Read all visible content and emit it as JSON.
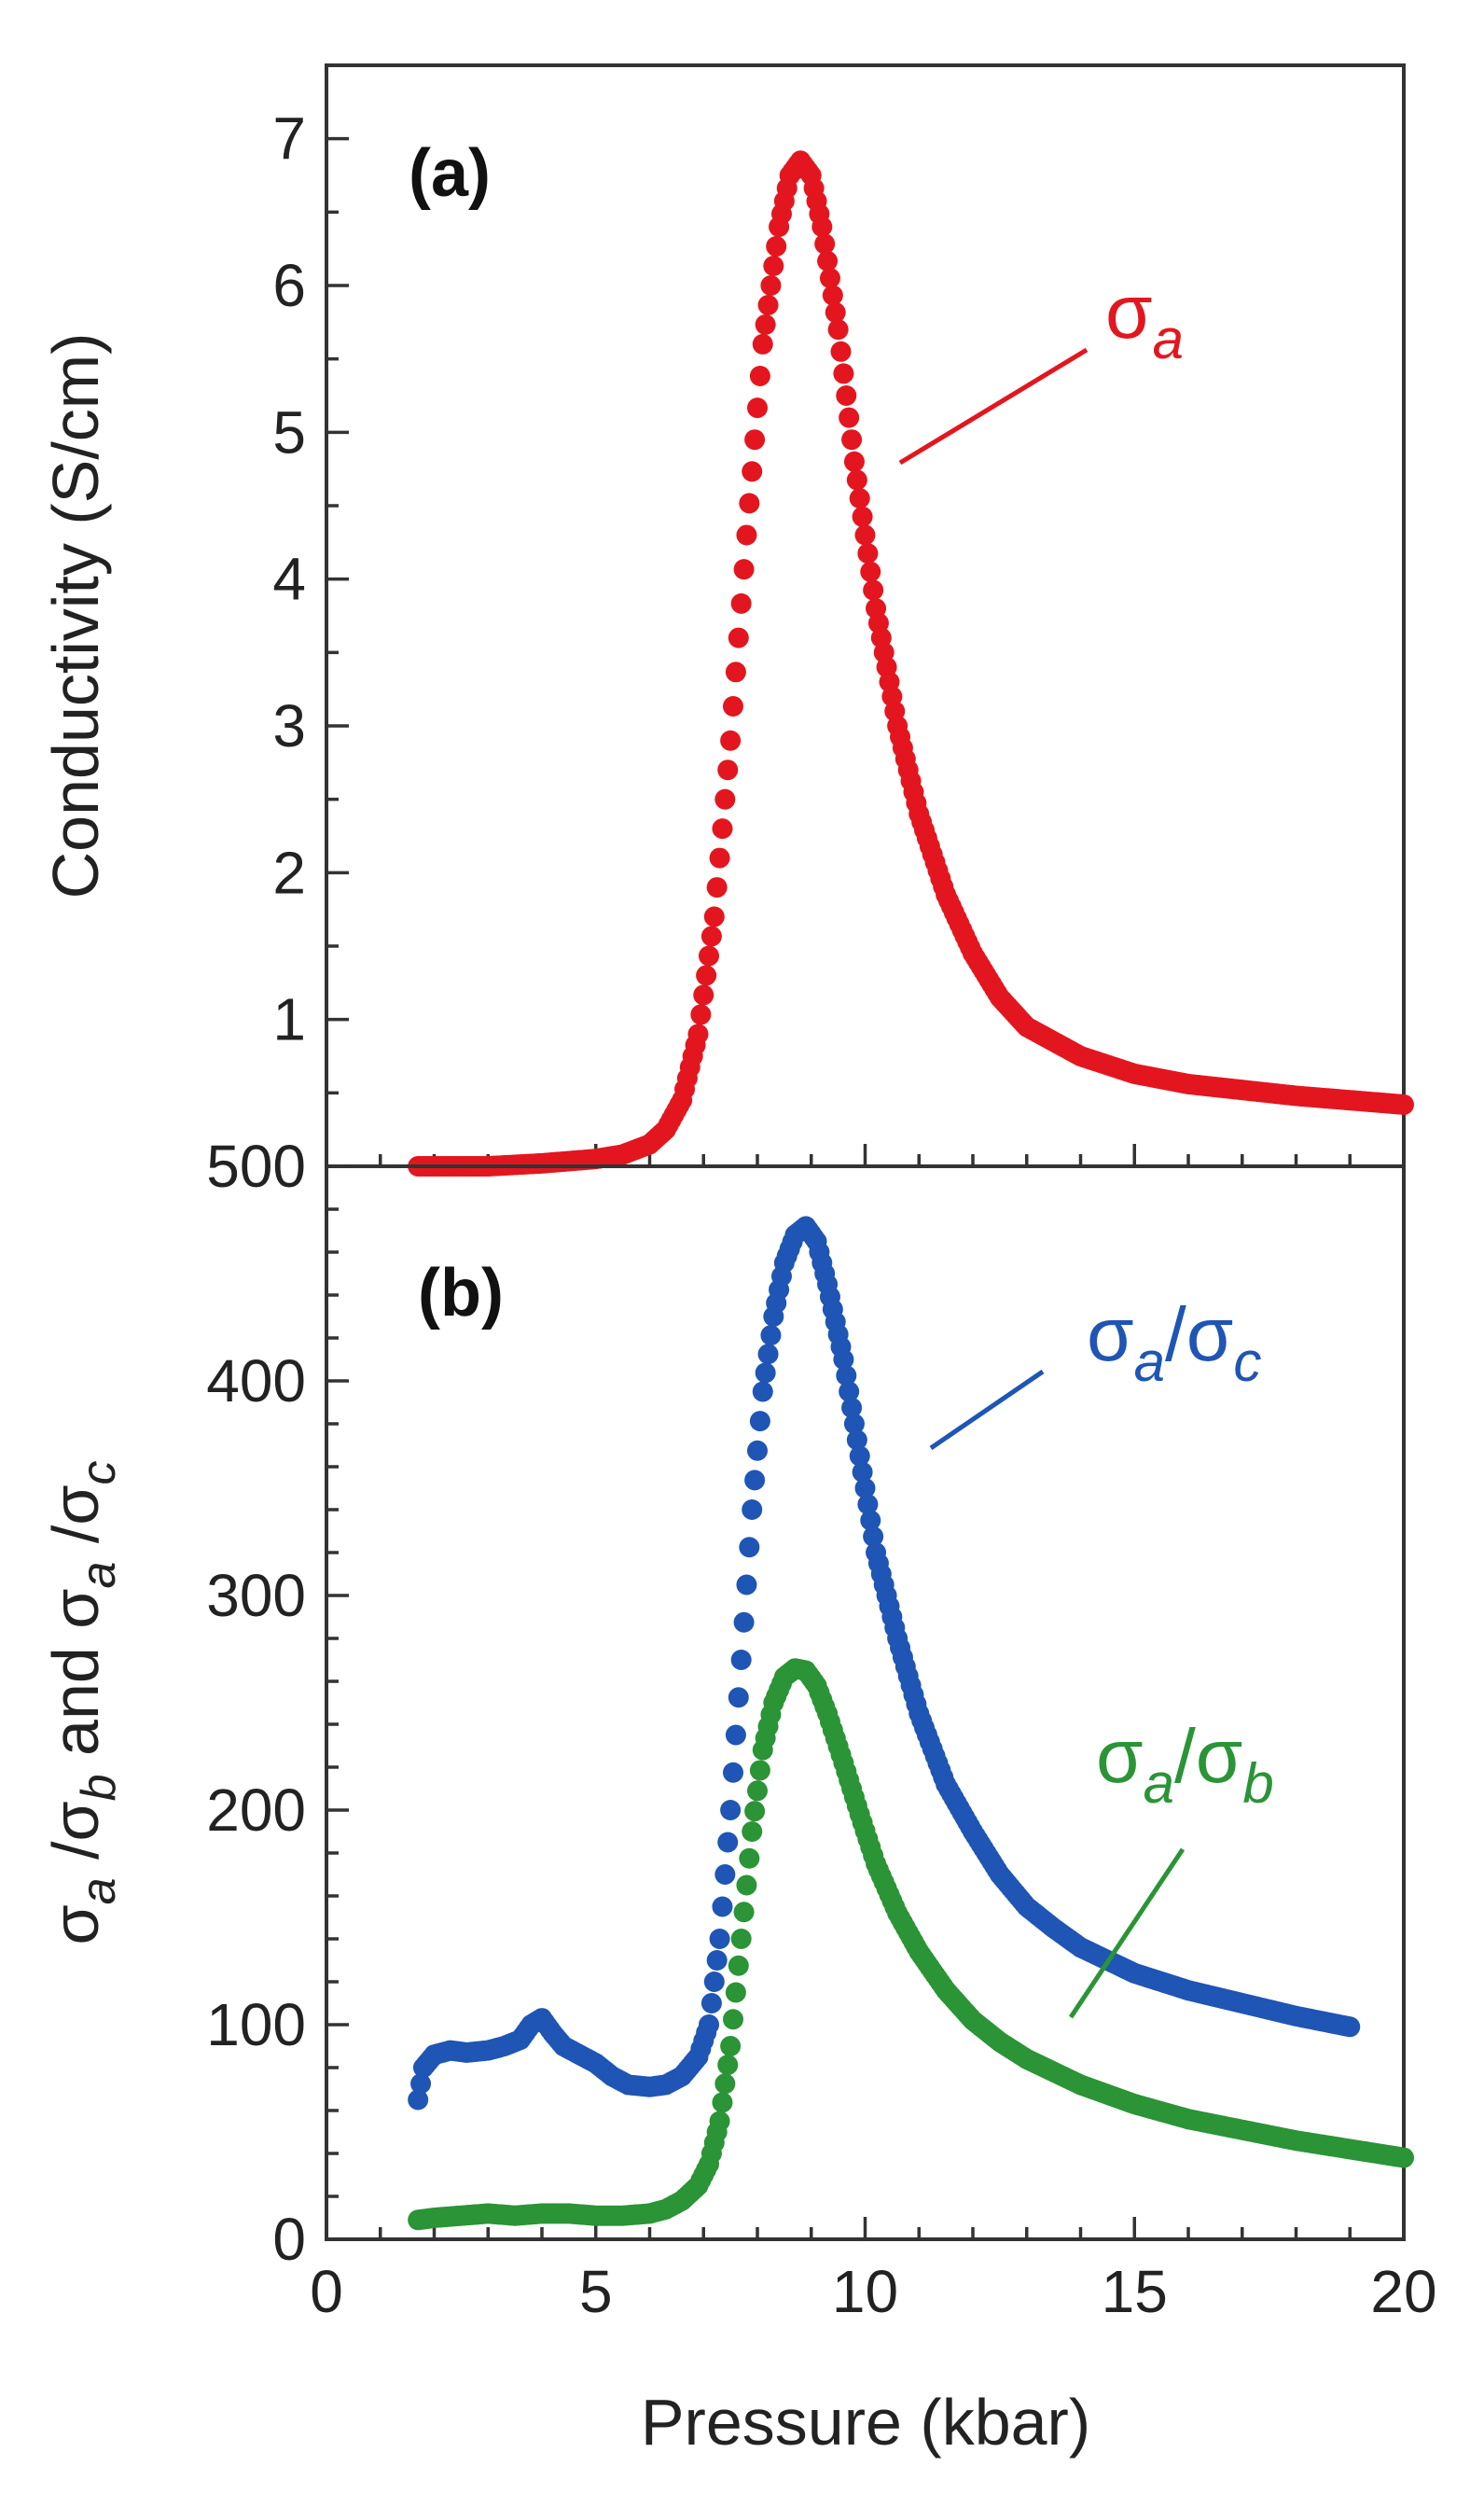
{
  "chart_data": [
    {
      "panel": "(a)",
      "type": "scatter",
      "xlabel": "Pressure (kbar)",
      "ylabel": "Conductivity (S/cm)",
      "xlim": [
        0,
        20
      ],
      "ylim": [
        0,
        7.5
      ],
      "xticks": [
        0,
        5,
        10,
        15,
        20
      ],
      "yticks": [
        1,
        2,
        3,
        4,
        5,
        6,
        7
      ],
      "series": [
        {
          "name": "σa",
          "color": "#e3161f",
          "annotation": {
            "main": "σ",
            "sub1": "a"
          },
          "x": [
            1.7,
            2,
            3,
            4,
            5,
            5.5,
            6,
            6.3,
            6.6,
            6.9,
            7.2,
            7.5,
            7.8,
            8.1,
            8.4,
            8.6,
            8.8,
            9.0,
            9.2,
            9.5,
            9.8,
            10.2,
            10.6,
            11.0,
            11.5,
            12.0,
            12.5,
            13.0,
            14.0,
            15.0,
            16.0,
            17.0,
            18.0,
            19.0,
            20.0
          ],
          "y": [
            0.0,
            0.0,
            0.0,
            0.02,
            0.05,
            0.08,
            0.15,
            0.25,
            0.45,
            0.9,
            1.7,
            2.9,
            4.3,
            5.6,
            6.4,
            6.75,
            6.85,
            6.75,
            6.4,
            5.7,
            4.8,
            3.8,
            3.0,
            2.4,
            1.85,
            1.45,
            1.15,
            0.95,
            0.75,
            0.63,
            0.56,
            0.52,
            0.48,
            0.45,
            0.42
          ]
        }
      ]
    },
    {
      "panel": "(b)",
      "type": "scatter",
      "xlabel": "Pressure (kbar)",
      "ylabel_parts": [
        "σ",
        "a",
        " /σ",
        "b",
        " and σ",
        "a",
        " /σ",
        "c"
      ],
      "xlim": [
        0,
        20
      ],
      "ylim": [
        0,
        500
      ],
      "xticks": [
        0,
        5,
        10,
        15,
        20
      ],
      "xtick_labels": [
        "0",
        "5",
        "10",
        "15",
        "20"
      ],
      "yticks": [
        0,
        100,
        200,
        300,
        400,
        500
      ],
      "series": [
        {
          "name": "σa/σc",
          "color": "#1f55b4",
          "annotation": {
            "main1": "σ",
            "sub1": "a",
            "slash": "/σ",
            "sub2": "c"
          },
          "x": [
            1.7,
            1.8,
            2.0,
            2.3,
            2.6,
            3.0,
            3.3,
            3.6,
            3.8,
            4.0,
            4.2,
            4.4,
            4.7,
            5.0,
            5.3,
            5.6,
            6.0,
            6.3,
            6.6,
            6.9,
            7.1,
            7.3,
            7.5,
            7.7,
            7.9,
            8.1,
            8.3,
            8.5,
            8.7,
            8.9,
            9.1,
            9.3,
            9.6,
            9.9,
            10.2,
            10.6,
            11.0,
            11.5,
            12.0,
            12.5,
            13.0,
            13.5,
            14.0,
            15.0,
            16.0,
            17.0,
            18.0,
            19.0
          ],
          "y": [
            65,
            80,
            86,
            88,
            87,
            88,
            90,
            93,
            100,
            103,
            96,
            90,
            86,
            82,
            76,
            72,
            71,
            72,
            76,
            85,
            100,
            140,
            200,
            270,
            340,
            395,
            430,
            455,
            468,
            472,
            465,
            445,
            410,
            365,
            320,
            280,
            245,
            212,
            190,
            170,
            155,
            145,
            136,
            124,
            116,
            110,
            104,
            99
          ]
        },
        {
          "name": "σa/σb",
          "color": "#2a9436",
          "annotation": {
            "main1": "σ",
            "sub1": "a",
            "slash": "/σ",
            "sub2": "b"
          },
          "x": [
            1.7,
            2.0,
            2.5,
            3.0,
            3.5,
            4.0,
            4.5,
            5.0,
            5.5,
            6.0,
            6.3,
            6.6,
            6.9,
            7.1,
            7.3,
            7.5,
            7.7,
            7.9,
            8.1,
            8.3,
            8.5,
            8.7,
            8.9,
            9.1,
            9.3,
            9.6,
            9.9,
            10.2,
            10.6,
            11.0,
            11.5,
            12.0,
            12.5,
            13.0,
            14.0,
            15.0,
            16.0,
            17.0,
            18.0,
            19.0,
            20.0
          ],
          "y": [
            9,
            10,
            11,
            12,
            11,
            12,
            12,
            11,
            11,
            12,
            14,
            18,
            25,
            35,
            55,
            90,
            140,
            190,
            228,
            250,
            262,
            266,
            265,
            258,
            245,
            222,
            198,
            175,
            152,
            134,
            116,
            102,
            92,
            84,
            72,
            63,
            56,
            51,
            46,
            42,
            38
          ]
        }
      ]
    }
  ]
}
